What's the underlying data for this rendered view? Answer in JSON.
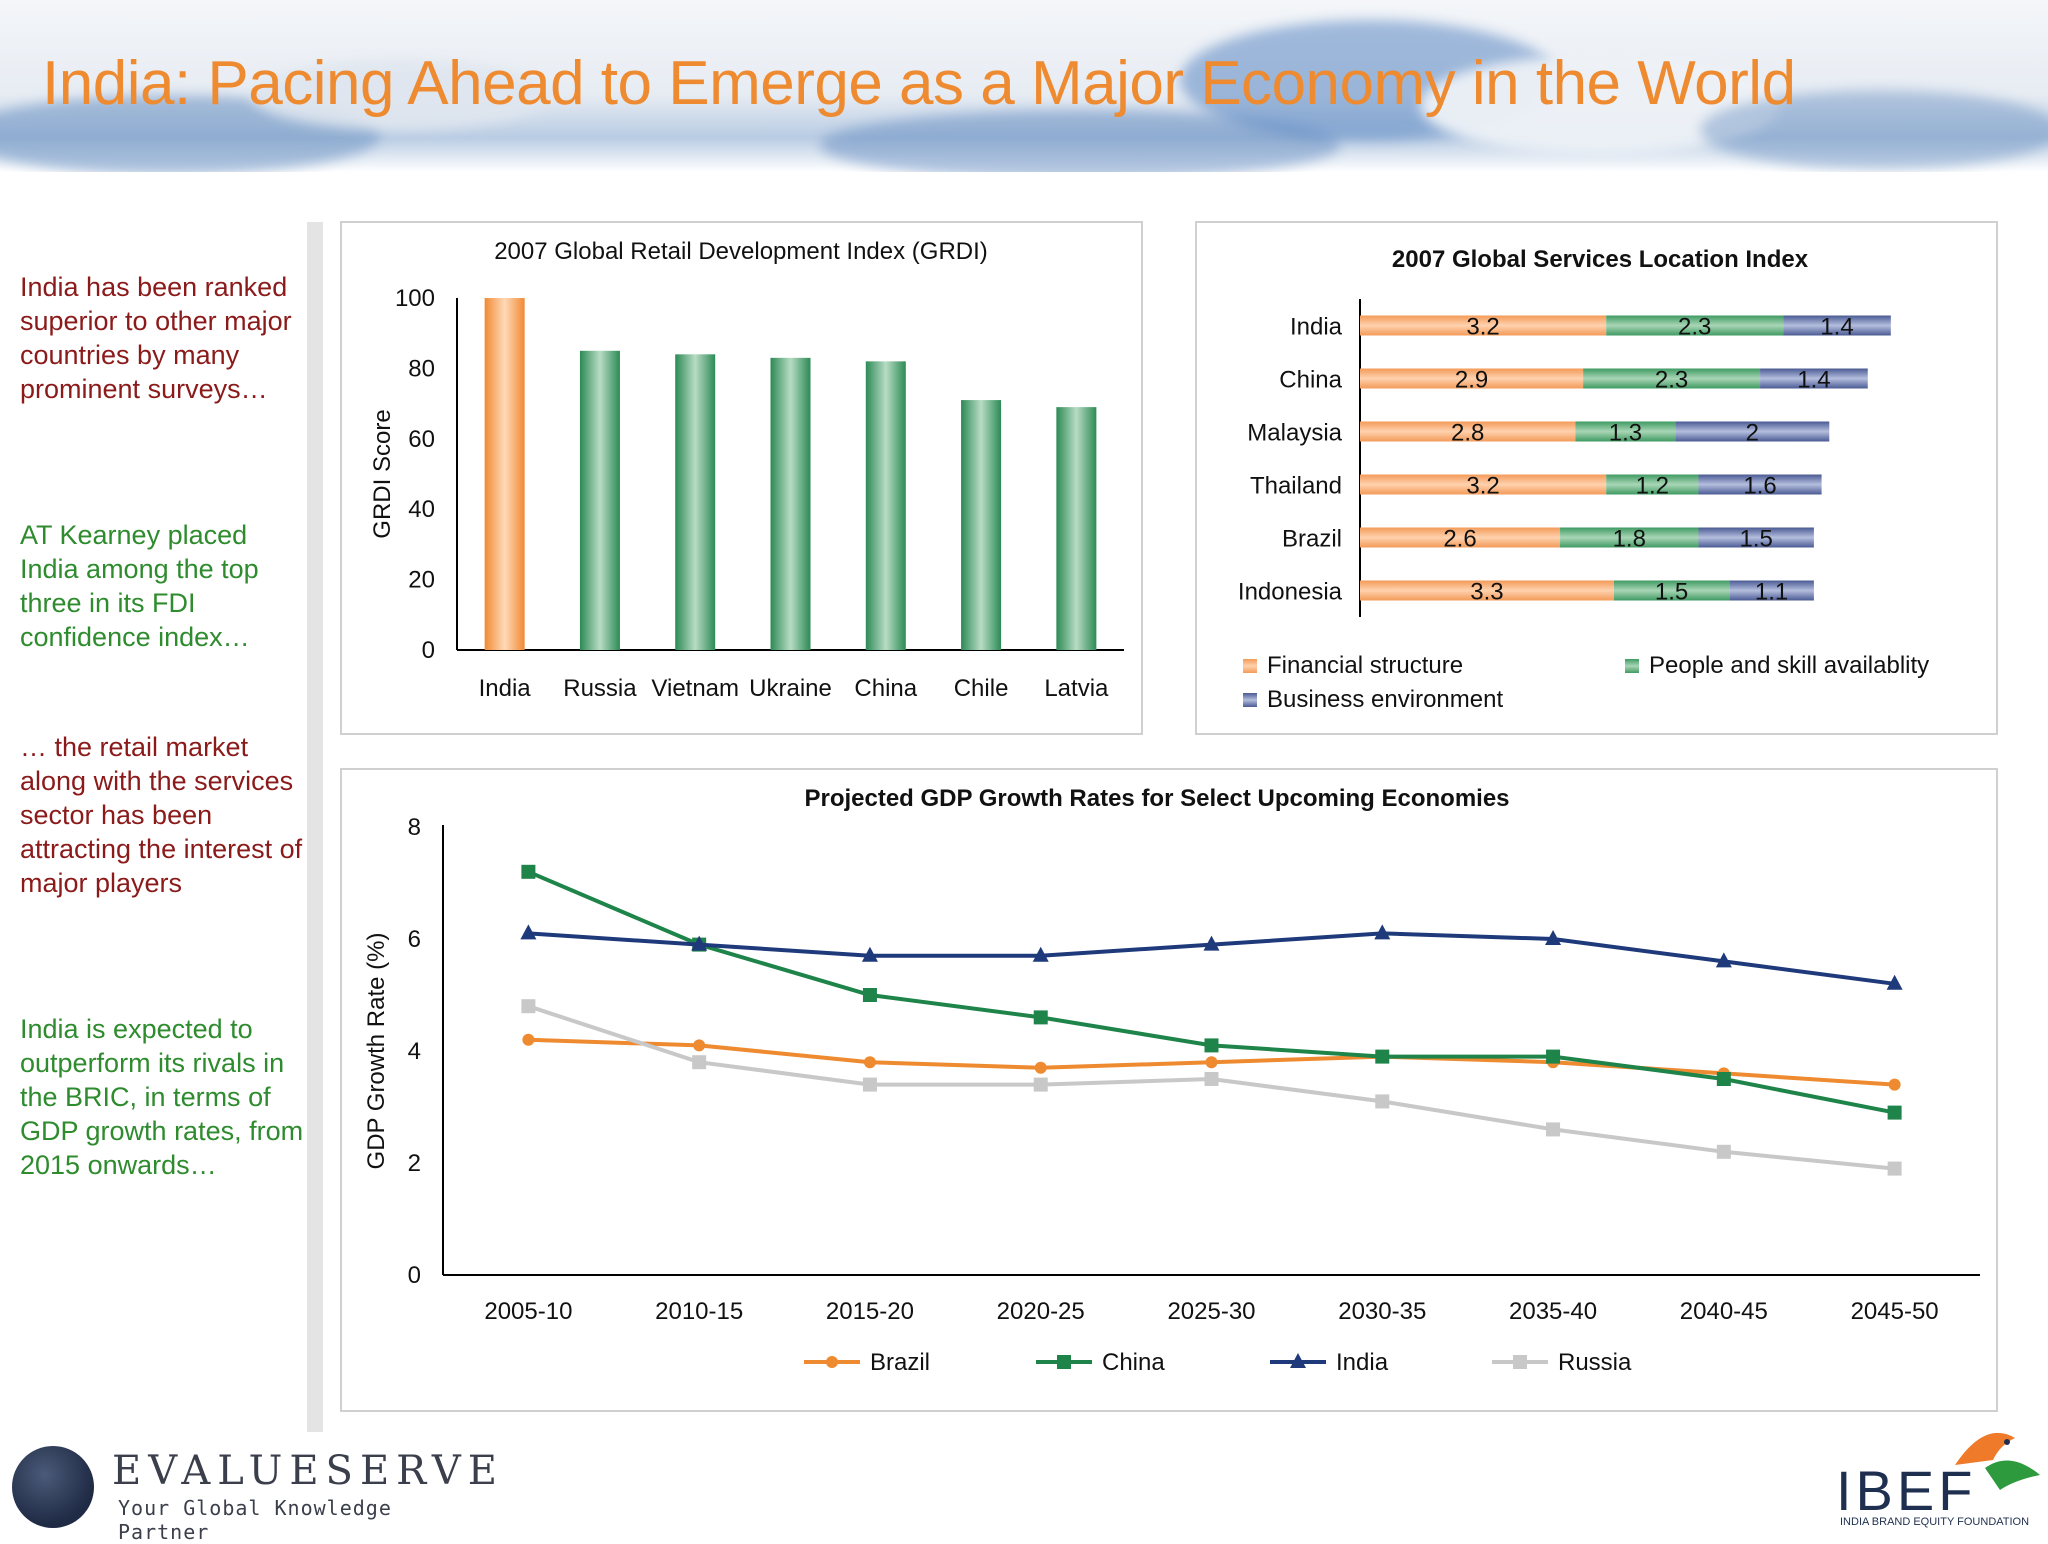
{
  "page": {
    "title": "India: Pacing Ahead to Emerge as a Major Economy in the World"
  },
  "sidebar": {
    "blocks": [
      {
        "text": "India has been ranked superior to other major countries by many prominent surveys…",
        "color": "#8b1a1a"
      },
      {
        "text": "AT Kearney placed India among the top three in its FDI confidence index…",
        "color": "#2e8b2e"
      },
      {
        "text": "… the retail market along with the services sector has been attracting the interest of major players",
        "color": "#8b1a1a"
      },
      {
        "text": "India is expected to outperform its rivals in the BRIC, in terms of GDP growth rates, from 2015 onwards…",
        "color": "#2e8b2e"
      }
    ]
  },
  "logos": {
    "evalueserve": {
      "name": "EVALUESERVE",
      "tagline": "Your Global Knowledge Partner"
    },
    "ibef": {
      "name": "IBEF",
      "subtitle": "INDIA BRAND EQUITY FOUNDATION"
    }
  },
  "colors": {
    "orange": "#ee8a30",
    "green": "#1e8449",
    "navy": "#1f3a7a",
    "gray": "#c8c8c8",
    "blue_bar": "#5a6aa0"
  },
  "chart_data": [
    {
      "type": "bar",
      "title": "2007 Global Retail Development Index (GRDI)",
      "ylabel": "GRDI Score",
      "xlabel": "",
      "categories": [
        "India",
        "Russia",
        "Vietnam",
        "Ukraine",
        "China",
        "Chile",
        "Latvia"
      ],
      "values": [
        100,
        85,
        84,
        83,
        82,
        71,
        69
      ],
      "highlight_index": 0,
      "ylim": [
        0,
        100
      ],
      "yticks": [
        0,
        20,
        40,
        60,
        80,
        100
      ],
      "grid": false
    },
    {
      "type": "bar",
      "orientation": "horizontal-stacked",
      "title": "2007 Global Services Location Index",
      "categories": [
        "India",
        "China",
        "Malaysia",
        "Thailand",
        "Brazil",
        "Indonesia"
      ],
      "series": [
        {
          "name": "Financial structure",
          "values": [
            3.2,
            2.9,
            2.8,
            3.2,
            2.6,
            3.3
          ],
          "labels": [
            "3.2",
            "2.9",
            "2.8",
            "3.2",
            "2.6",
            "3.3"
          ],
          "color": "#f39a58"
        },
        {
          "name": "People and skill availablity",
          "values": [
            2.3,
            2.3,
            1.3,
            1.2,
            1.8,
            1.5
          ],
          "labels": [
            "2.3",
            "2.3",
            "1.3",
            "1.2",
            "1.8",
            "1.5"
          ],
          "color": "#3f9a62"
        },
        {
          "name": "Business environment",
          "values": [
            1.4,
            1.4,
            2,
            1.6,
            1.5,
            1.1
          ],
          "labels": [
            "1.4",
            "1.4",
            "2",
            "1.6",
            "1.5",
            "1.1"
          ],
          "color": "#5a6aa0"
        }
      ],
      "xlim": [
        0,
        7.5
      ],
      "legend": "bottom",
      "grid": false
    },
    {
      "type": "line",
      "title": "Projected GDP Growth Rates for Select Upcoming Economies",
      "ylabel": "GDP Growth Rate (%)",
      "xlabel": "",
      "categories": [
        "2005-10",
        "2010-15",
        "2015-20",
        "2020-25",
        "2025-30",
        "2030-35",
        "2035-40",
        "2040-45",
        "2045-50"
      ],
      "series": [
        {
          "name": "Brazil",
          "values": [
            4.2,
            4.1,
            3.8,
            3.7,
            3.8,
            3.9,
            3.8,
            3.6,
            3.4
          ],
          "color": "#ee8a30",
          "marker": "circle"
        },
        {
          "name": "China",
          "values": [
            7.2,
            5.9,
            5.0,
            4.6,
            4.1,
            3.9,
            3.9,
            3.5,
            2.9
          ],
          "color": "#1e8449",
          "marker": "square"
        },
        {
          "name": "India",
          "values": [
            6.1,
            5.9,
            5.7,
            5.7,
            5.9,
            6.1,
            6.0,
            5.6,
            5.2
          ],
          "color": "#1f3a7a",
          "marker": "triangle"
        },
        {
          "name": "Russia",
          "values": [
            4.8,
            3.8,
            3.4,
            3.4,
            3.5,
            3.1,
            2.6,
            2.2,
            1.9
          ],
          "color": "#c8c8c8",
          "marker": "square"
        }
      ],
      "ylim": [
        0,
        8
      ],
      "yticks": [
        0,
        2,
        4,
        6,
        8
      ],
      "legend": "bottom",
      "grid": false
    }
  ]
}
